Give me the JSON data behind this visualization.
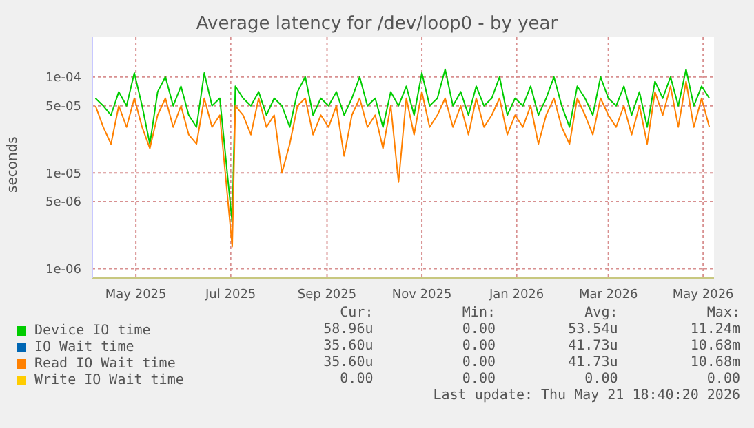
{
  "chart_data": {
    "type": "line",
    "title": "Average latency for /dev/loop0 - by year",
    "ylabel": "seconds",
    "log": "y",
    "grid": true,
    "legend": "bottom",
    "marker": "none",
    "line_style": "solid",
    "xlim": [
      "2025-04-03",
      "2026-05-08"
    ],
    "xticks": [
      {
        "value": "2025-05-01",
        "label": "May 2025"
      },
      {
        "value": "2025-07-01",
        "label": "Jul 2025"
      },
      {
        "value": "2025-09-01",
        "label": "Sep 2025"
      },
      {
        "value": "2025-11-01",
        "label": "Nov 2025"
      },
      {
        "value": "2026-01-01",
        "label": "Jan 2026"
      },
      {
        "value": "2026-03-01",
        "label": "Mar 2026"
      },
      {
        "value": "2026-05-01",
        "label": "May 2026"
      }
    ],
    "ylim": [
      8e-07,
      0.00026
    ],
    "yticks": [
      {
        "value": 1e-06,
        "label": "1e-06"
      },
      {
        "value": 5e-06,
        "label": "5e-06"
      },
      {
        "value": 1e-05,
        "label": "1e-05"
      },
      {
        "value": 5e-05,
        "label": "5e-05"
      },
      {
        "value": 0.0001,
        "label": "1e-04"
      }
    ],
    "x": [
      "2025-04-05",
      "2025-04-10",
      "2025-04-15",
      "2025-04-20",
      "2025-04-25",
      "2025-04-30",
      "2025-05-05",
      "2025-05-10",
      "2025-05-15",
      "2025-05-20",
      "2025-05-25",
      "2025-05-30",
      "2025-06-04",
      "2025-06-09",
      "2025-06-14",
      "2025-06-19",
      "2025-06-24",
      "2025-07-02",
      "2025-07-04",
      "2025-07-09",
      "2025-07-14",
      "2025-07-19",
      "2025-07-24",
      "2025-07-29",
      "2025-08-03",
      "2025-08-08",
      "2025-08-13",
      "2025-08-18",
      "2025-08-23",
      "2025-08-28",
      "2025-09-02",
      "2025-09-07",
      "2025-09-12",
      "2025-09-17",
      "2025-09-22",
      "2025-09-27",
      "2025-10-02",
      "2025-10-07",
      "2025-10-12",
      "2025-10-17",
      "2025-10-22",
      "2025-10-27",
      "2025-11-01",
      "2025-11-06",
      "2025-11-11",
      "2025-11-16",
      "2025-11-21",
      "2025-11-26",
      "2025-12-01",
      "2025-12-06",
      "2025-12-11",
      "2025-12-16",
      "2025-12-21",
      "2025-12-26",
      "2025-12-31",
      "2026-01-05",
      "2026-01-10",
      "2026-01-15",
      "2026-01-20",
      "2026-01-25",
      "2026-01-30",
      "2026-02-04",
      "2026-02-09",
      "2026-02-14",
      "2026-02-19",
      "2026-02-24",
      "2026-03-01",
      "2026-03-06",
      "2026-03-11",
      "2026-03-16",
      "2026-03-21",
      "2026-03-26",
      "2026-03-31",
      "2026-04-05",
      "2026-04-10",
      "2026-04-15",
      "2026-04-20",
      "2026-04-25",
      "2026-04-30",
      "2026-05-05"
    ],
    "series": [
      {
        "name": "Device IO time",
        "color": "#00cc00",
        "values": [
          6e-05,
          5e-05,
          4e-05,
          7e-05,
          5e-05,
          0.00011,
          5e-05,
          2e-05,
          7e-05,
          0.0001,
          5e-05,
          8e-05,
          4e-05,
          3e-05,
          0.00011,
          5e-05,
          6e-05,
          3e-06,
          8e-05,
          6e-05,
          5e-05,
          7e-05,
          4e-05,
          6e-05,
          5e-05,
          3e-05,
          7e-05,
          0.0001,
          4e-05,
          6e-05,
          5e-05,
          7e-05,
          4e-05,
          6e-05,
          0.0001,
          5e-05,
          6e-05,
          3e-05,
          7e-05,
          5e-05,
          8e-05,
          4e-05,
          0.00011,
          5e-05,
          6e-05,
          0.00012,
          5e-05,
          7e-05,
          4e-05,
          8e-05,
          5e-05,
          6e-05,
          0.0001,
          4e-05,
          6e-05,
          5e-05,
          8e-05,
          4e-05,
          6e-05,
          0.0001,
          5e-05,
          3e-05,
          8e-05,
          6e-05,
          4e-05,
          0.0001,
          6e-05,
          5e-05,
          8e-05,
          4e-05,
          7e-05,
          3e-05,
          9e-05,
          6e-05,
          0.0001,
          5e-05,
          0.00012,
          5e-05,
          8e-05,
          6e-05
        ]
      },
      {
        "name": "IO Wait time",
        "color": "#0066b3",
        "values": [
          null,
          null,
          null,
          null,
          null,
          null,
          null,
          null,
          null,
          null,
          null,
          null,
          null,
          null,
          null,
          null,
          null,
          null,
          null,
          null,
          null,
          null,
          null,
          null,
          null,
          null,
          null,
          null,
          null,
          null,
          null,
          null,
          null,
          null,
          null,
          null,
          null,
          null,
          null,
          null,
          null,
          null,
          null,
          null,
          null,
          null,
          null,
          null,
          null,
          null,
          null,
          null,
          null,
          null,
          null,
          null,
          null,
          null,
          null,
          null,
          null,
          null,
          null,
          null,
          null,
          null,
          null,
          null,
          null,
          null,
          null,
          null,
          null,
          null,
          null,
          null,
          null,
          null,
          null,
          null
        ]
      },
      {
        "name": "Read IO Wait time",
        "color": "#ff8000",
        "values": [
          5e-05,
          3e-05,
          2e-05,
          5e-05,
          3e-05,
          6e-05,
          3e-05,
          1.8e-05,
          4e-05,
          6e-05,
          3e-05,
          5e-05,
          2.5e-05,
          2e-05,
          6e-05,
          3e-05,
          4e-05,
          1.7e-06,
          5e-05,
          4e-05,
          2.5e-05,
          6e-05,
          3e-05,
          4e-05,
          1e-05,
          2e-05,
          5e-05,
          6e-05,
          2.5e-05,
          4e-05,
          3e-05,
          5e-05,
          1.5e-05,
          4e-05,
          6e-05,
          3e-05,
          4e-05,
          1.8e-05,
          5e-05,
          8e-06,
          6e-05,
          2.5e-05,
          7e-05,
          3e-05,
          4e-05,
          6e-05,
          3e-05,
          5e-05,
          2.5e-05,
          6e-05,
          3e-05,
          4e-05,
          6e-05,
          2.5e-05,
          4e-05,
          3e-05,
          5e-05,
          2e-05,
          4e-05,
          6e-05,
          3e-05,
          2e-05,
          6e-05,
          4e-05,
          2.5e-05,
          6e-05,
          4e-05,
          3e-05,
          5e-05,
          2.5e-05,
          5e-05,
          2e-05,
          7e-05,
          4e-05,
          8e-05,
          3e-05,
          9e-05,
          3e-05,
          6e-05,
          3e-05
        ]
      },
      {
        "name": "Write IO Wait time",
        "color": "#ffcc00",
        "values": [
          null,
          null,
          null,
          null,
          null,
          null,
          null,
          null,
          null,
          null,
          null,
          null,
          null,
          null,
          null,
          null,
          null,
          null,
          null,
          null,
          null,
          null,
          null,
          null,
          null,
          null,
          null,
          null,
          null,
          null,
          null,
          null,
          null,
          null,
          null,
          null,
          null,
          null,
          null,
          null,
          null,
          null,
          null,
          null,
          null,
          null,
          null,
          null,
          null,
          null,
          null,
          null,
          null,
          null,
          null,
          null,
          null,
          null,
          null,
          null,
          null,
          null,
          null,
          null,
          null,
          null,
          null,
          null,
          null,
          null,
          null,
          null,
          null,
          null,
          null,
          null,
          null,
          null,
          null,
          null
        ]
      }
    ],
    "annotations": [
      "Cur:",
      "Min:",
      "Avg:",
      "Max:",
      "58.96u",
      "0.00",
      "53.54u",
      "11.24m",
      "35.60u",
      "0.00",
      "41.73u",
      "10.68m",
      "35.60u",
      "0.00",
      "41.73u",
      "10.68m",
      "0.00",
      "0.00",
      "0.00",
      "0.00",
      "Last update: Thu May 21 18:40:20 2026"
    ]
  }
}
